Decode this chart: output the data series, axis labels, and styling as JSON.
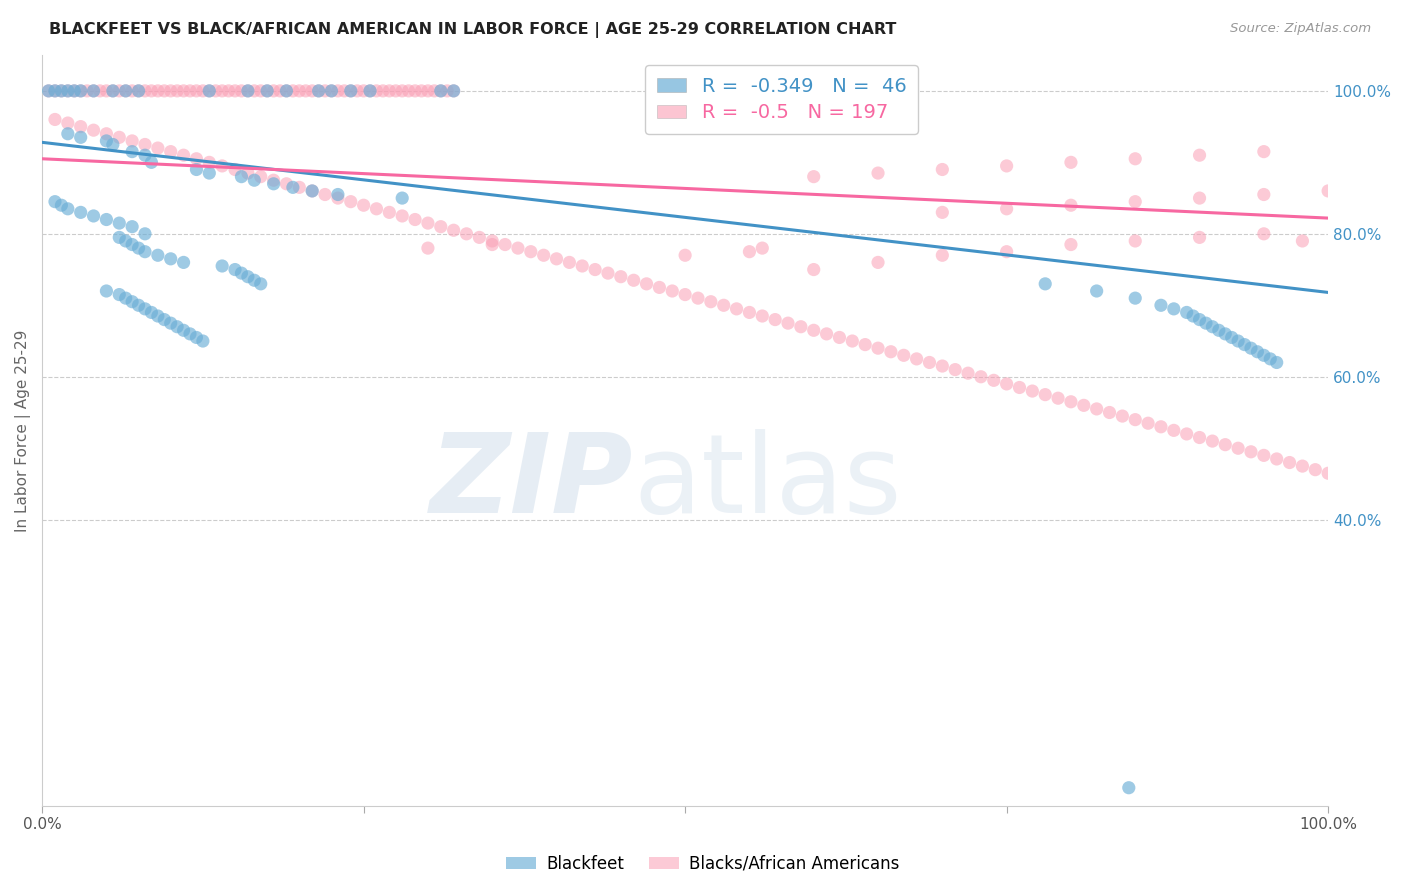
{
  "title": "BLACKFEET VS BLACK/AFRICAN AMERICAN IN LABOR FORCE | AGE 25-29 CORRELATION CHART",
  "source": "Source: ZipAtlas.com",
  "ylabel": "In Labor Force | Age 25-29",
  "xlim": [
    0.0,
    1.0
  ],
  "ylim": [
    0.0,
    1.05
  ],
  "ytick_labels_right": [
    "100.0%",
    "80.0%",
    "60.0%",
    "40.0%"
  ],
  "ytick_positions_right": [
    1.0,
    0.8,
    0.6,
    0.4
  ],
  "grid_color": "#cccccc",
  "background_color": "#ffffff",
  "blue_color": "#6baed6",
  "pink_color": "#fa9fb5",
  "blue_line_color": "#4292c6",
  "pink_line_color": "#f768a1",
  "blue_R": -0.349,
  "blue_N": 46,
  "pink_R": -0.5,
  "pink_N": 197,
  "legend_label_blue": "Blackfeet",
  "legend_label_pink": "Blacks/African Americans",
  "blue_points": [
    [
      0.005,
      1.0
    ],
    [
      0.01,
      1.0
    ],
    [
      0.015,
      1.0
    ],
    [
      0.02,
      1.0
    ],
    [
      0.025,
      1.0
    ],
    [
      0.03,
      1.0
    ],
    [
      0.04,
      1.0
    ],
    [
      0.055,
      1.0
    ],
    [
      0.065,
      1.0
    ],
    [
      0.075,
      1.0
    ],
    [
      0.13,
      1.0
    ],
    [
      0.16,
      1.0
    ],
    [
      0.175,
      1.0
    ],
    [
      0.19,
      1.0
    ],
    [
      0.215,
      1.0
    ],
    [
      0.225,
      1.0
    ],
    [
      0.24,
      1.0
    ],
    [
      0.255,
      1.0
    ],
    [
      0.31,
      1.0
    ],
    [
      0.32,
      1.0
    ],
    [
      0.02,
      0.94
    ],
    [
      0.03,
      0.935
    ],
    [
      0.05,
      0.93
    ],
    [
      0.055,
      0.925
    ],
    [
      0.07,
      0.915
    ],
    [
      0.08,
      0.91
    ],
    [
      0.085,
      0.9
    ],
    [
      0.12,
      0.89
    ],
    [
      0.13,
      0.885
    ],
    [
      0.155,
      0.88
    ],
    [
      0.165,
      0.875
    ],
    [
      0.18,
      0.87
    ],
    [
      0.195,
      0.865
    ],
    [
      0.21,
      0.86
    ],
    [
      0.23,
      0.855
    ],
    [
      0.28,
      0.85
    ],
    [
      0.01,
      0.845
    ],
    [
      0.015,
      0.84
    ],
    [
      0.02,
      0.835
    ],
    [
      0.03,
      0.83
    ],
    [
      0.04,
      0.825
    ],
    [
      0.05,
      0.82
    ],
    [
      0.06,
      0.815
    ],
    [
      0.07,
      0.81
    ],
    [
      0.08,
      0.8
    ],
    [
      0.06,
      0.795
    ],
    [
      0.065,
      0.79
    ],
    [
      0.07,
      0.785
    ],
    [
      0.075,
      0.78
    ],
    [
      0.08,
      0.775
    ],
    [
      0.09,
      0.77
    ],
    [
      0.1,
      0.765
    ],
    [
      0.11,
      0.76
    ],
    [
      0.14,
      0.755
    ],
    [
      0.15,
      0.75
    ],
    [
      0.155,
      0.745
    ],
    [
      0.16,
      0.74
    ],
    [
      0.165,
      0.735
    ],
    [
      0.17,
      0.73
    ],
    [
      0.05,
      0.72
    ],
    [
      0.06,
      0.715
    ],
    [
      0.065,
      0.71
    ],
    [
      0.07,
      0.705
    ],
    [
      0.075,
      0.7
    ],
    [
      0.08,
      0.695
    ],
    [
      0.085,
      0.69
    ],
    [
      0.09,
      0.685
    ],
    [
      0.095,
      0.68
    ],
    [
      0.1,
      0.675
    ],
    [
      0.105,
      0.67
    ],
    [
      0.11,
      0.665
    ],
    [
      0.115,
      0.66
    ],
    [
      0.12,
      0.655
    ],
    [
      0.125,
      0.65
    ],
    [
      0.78,
      0.73
    ],
    [
      0.82,
      0.72
    ],
    [
      0.85,
      0.71
    ],
    [
      0.87,
      0.7
    ],
    [
      0.88,
      0.695
    ],
    [
      0.89,
      0.69
    ],
    [
      0.895,
      0.685
    ],
    [
      0.9,
      0.68
    ],
    [
      0.905,
      0.675
    ],
    [
      0.91,
      0.67
    ],
    [
      0.915,
      0.665
    ],
    [
      0.92,
      0.66
    ],
    [
      0.925,
      0.655
    ],
    [
      0.93,
      0.65
    ],
    [
      0.935,
      0.645
    ],
    [
      0.94,
      0.64
    ],
    [
      0.945,
      0.635
    ],
    [
      0.95,
      0.63
    ],
    [
      0.955,
      0.625
    ],
    [
      0.96,
      0.62
    ],
    [
      0.845,
      0.025
    ]
  ],
  "pink_points": [
    [
      0.005,
      1.0
    ],
    [
      0.01,
      1.0
    ],
    [
      0.015,
      1.0
    ],
    [
      0.02,
      1.0
    ],
    [
      0.025,
      1.0
    ],
    [
      0.03,
      1.0
    ],
    [
      0.035,
      1.0
    ],
    [
      0.04,
      1.0
    ],
    [
      0.045,
      1.0
    ],
    [
      0.05,
      1.0
    ],
    [
      0.055,
      1.0
    ],
    [
      0.06,
      1.0
    ],
    [
      0.065,
      1.0
    ],
    [
      0.07,
      1.0
    ],
    [
      0.075,
      1.0
    ],
    [
      0.08,
      1.0
    ],
    [
      0.085,
      1.0
    ],
    [
      0.09,
      1.0
    ],
    [
      0.095,
      1.0
    ],
    [
      0.1,
      1.0
    ],
    [
      0.105,
      1.0
    ],
    [
      0.11,
      1.0
    ],
    [
      0.115,
      1.0
    ],
    [
      0.12,
      1.0
    ],
    [
      0.125,
      1.0
    ],
    [
      0.13,
      1.0
    ],
    [
      0.135,
      1.0
    ],
    [
      0.14,
      1.0
    ],
    [
      0.145,
      1.0
    ],
    [
      0.15,
      1.0
    ],
    [
      0.155,
      1.0
    ],
    [
      0.16,
      1.0
    ],
    [
      0.165,
      1.0
    ],
    [
      0.17,
      1.0
    ],
    [
      0.175,
      1.0
    ],
    [
      0.18,
      1.0
    ],
    [
      0.185,
      1.0
    ],
    [
      0.19,
      1.0
    ],
    [
      0.195,
      1.0
    ],
    [
      0.2,
      1.0
    ],
    [
      0.205,
      1.0
    ],
    [
      0.21,
      1.0
    ],
    [
      0.215,
      1.0
    ],
    [
      0.22,
      1.0
    ],
    [
      0.225,
      1.0
    ],
    [
      0.23,
      1.0
    ],
    [
      0.235,
      1.0
    ],
    [
      0.24,
      1.0
    ],
    [
      0.245,
      1.0
    ],
    [
      0.25,
      1.0
    ],
    [
      0.255,
      1.0
    ],
    [
      0.26,
      1.0
    ],
    [
      0.265,
      1.0
    ],
    [
      0.27,
      1.0
    ],
    [
      0.275,
      1.0
    ],
    [
      0.28,
      1.0
    ],
    [
      0.285,
      1.0
    ],
    [
      0.29,
      1.0
    ],
    [
      0.295,
      1.0
    ],
    [
      0.3,
      1.0
    ],
    [
      0.305,
      1.0
    ],
    [
      0.31,
      1.0
    ],
    [
      0.315,
      1.0
    ],
    [
      0.32,
      1.0
    ],
    [
      0.01,
      0.96
    ],
    [
      0.02,
      0.955
    ],
    [
      0.03,
      0.95
    ],
    [
      0.04,
      0.945
    ],
    [
      0.05,
      0.94
    ],
    [
      0.06,
      0.935
    ],
    [
      0.07,
      0.93
    ],
    [
      0.08,
      0.925
    ],
    [
      0.09,
      0.92
    ],
    [
      0.1,
      0.915
    ],
    [
      0.11,
      0.91
    ],
    [
      0.12,
      0.905
    ],
    [
      0.13,
      0.9
    ],
    [
      0.14,
      0.895
    ],
    [
      0.15,
      0.89
    ],
    [
      0.16,
      0.885
    ],
    [
      0.17,
      0.88
    ],
    [
      0.18,
      0.875
    ],
    [
      0.19,
      0.87
    ],
    [
      0.2,
      0.865
    ],
    [
      0.21,
      0.86
    ],
    [
      0.22,
      0.855
    ],
    [
      0.23,
      0.85
    ],
    [
      0.24,
      0.845
    ],
    [
      0.25,
      0.84
    ],
    [
      0.26,
      0.835
    ],
    [
      0.27,
      0.83
    ],
    [
      0.28,
      0.825
    ],
    [
      0.29,
      0.82
    ],
    [
      0.3,
      0.815
    ],
    [
      0.31,
      0.81
    ],
    [
      0.32,
      0.805
    ],
    [
      0.33,
      0.8
    ],
    [
      0.34,
      0.795
    ],
    [
      0.35,
      0.79
    ],
    [
      0.36,
      0.785
    ],
    [
      0.37,
      0.78
    ],
    [
      0.38,
      0.775
    ],
    [
      0.39,
      0.77
    ],
    [
      0.4,
      0.765
    ],
    [
      0.41,
      0.76
    ],
    [
      0.42,
      0.755
    ],
    [
      0.43,
      0.75
    ],
    [
      0.44,
      0.745
    ],
    [
      0.45,
      0.74
    ],
    [
      0.46,
      0.735
    ],
    [
      0.47,
      0.73
    ],
    [
      0.48,
      0.725
    ],
    [
      0.49,
      0.72
    ],
    [
      0.5,
      0.715
    ],
    [
      0.51,
      0.71
    ],
    [
      0.52,
      0.705
    ],
    [
      0.53,
      0.7
    ],
    [
      0.54,
      0.695
    ],
    [
      0.55,
      0.69
    ],
    [
      0.56,
      0.685
    ],
    [
      0.57,
      0.68
    ],
    [
      0.58,
      0.675
    ],
    [
      0.59,
      0.67
    ],
    [
      0.6,
      0.665
    ],
    [
      0.61,
      0.66
    ],
    [
      0.62,
      0.655
    ],
    [
      0.63,
      0.65
    ],
    [
      0.64,
      0.645
    ],
    [
      0.65,
      0.64
    ],
    [
      0.66,
      0.635
    ],
    [
      0.67,
      0.63
    ],
    [
      0.68,
      0.625
    ],
    [
      0.69,
      0.62
    ],
    [
      0.7,
      0.615
    ],
    [
      0.71,
      0.61
    ],
    [
      0.72,
      0.605
    ],
    [
      0.73,
      0.6
    ],
    [
      0.74,
      0.595
    ],
    [
      0.75,
      0.59
    ],
    [
      0.76,
      0.585
    ],
    [
      0.77,
      0.58
    ],
    [
      0.78,
      0.575
    ],
    [
      0.79,
      0.57
    ],
    [
      0.8,
      0.565
    ],
    [
      0.81,
      0.56
    ],
    [
      0.82,
      0.555
    ],
    [
      0.83,
      0.55
    ],
    [
      0.84,
      0.545
    ],
    [
      0.85,
      0.54
    ],
    [
      0.86,
      0.535
    ],
    [
      0.87,
      0.53
    ],
    [
      0.88,
      0.525
    ],
    [
      0.89,
      0.52
    ],
    [
      0.9,
      0.515
    ],
    [
      0.91,
      0.51
    ],
    [
      0.92,
      0.505
    ],
    [
      0.93,
      0.5
    ],
    [
      0.94,
      0.495
    ],
    [
      0.95,
      0.49
    ],
    [
      0.96,
      0.485
    ],
    [
      0.97,
      0.48
    ],
    [
      0.98,
      0.475
    ],
    [
      0.99,
      0.47
    ],
    [
      1.0,
      0.465
    ],
    [
      0.6,
      0.75
    ],
    [
      0.65,
      0.76
    ],
    [
      0.7,
      0.77
    ],
    [
      0.75,
      0.775
    ],
    [
      0.8,
      0.785
    ],
    [
      0.85,
      0.79
    ],
    [
      0.9,
      0.795
    ],
    [
      0.95,
      0.8
    ],
    [
      0.7,
      0.83
    ],
    [
      0.75,
      0.835
    ],
    [
      0.8,
      0.84
    ],
    [
      0.85,
      0.845
    ],
    [
      0.9,
      0.85
    ],
    [
      0.95,
      0.855
    ],
    [
      1.0,
      0.86
    ],
    [
      0.6,
      0.88
    ],
    [
      0.65,
      0.885
    ],
    [
      0.7,
      0.89
    ],
    [
      0.75,
      0.895
    ],
    [
      0.8,
      0.9
    ],
    [
      0.85,
      0.905
    ],
    [
      0.9,
      0.91
    ],
    [
      0.95,
      0.915
    ],
    [
      0.5,
      0.77
    ],
    [
      0.55,
      0.775
    ],
    [
      0.56,
      0.78
    ],
    [
      0.3,
      0.78
    ],
    [
      0.35,
      0.785
    ],
    [
      0.98,
      0.79
    ]
  ],
  "blue_line": [
    [
      0.0,
      0.928
    ],
    [
      1.0,
      0.718
    ]
  ],
  "pink_line": [
    [
      0.0,
      0.905
    ],
    [
      1.0,
      0.822
    ]
  ]
}
